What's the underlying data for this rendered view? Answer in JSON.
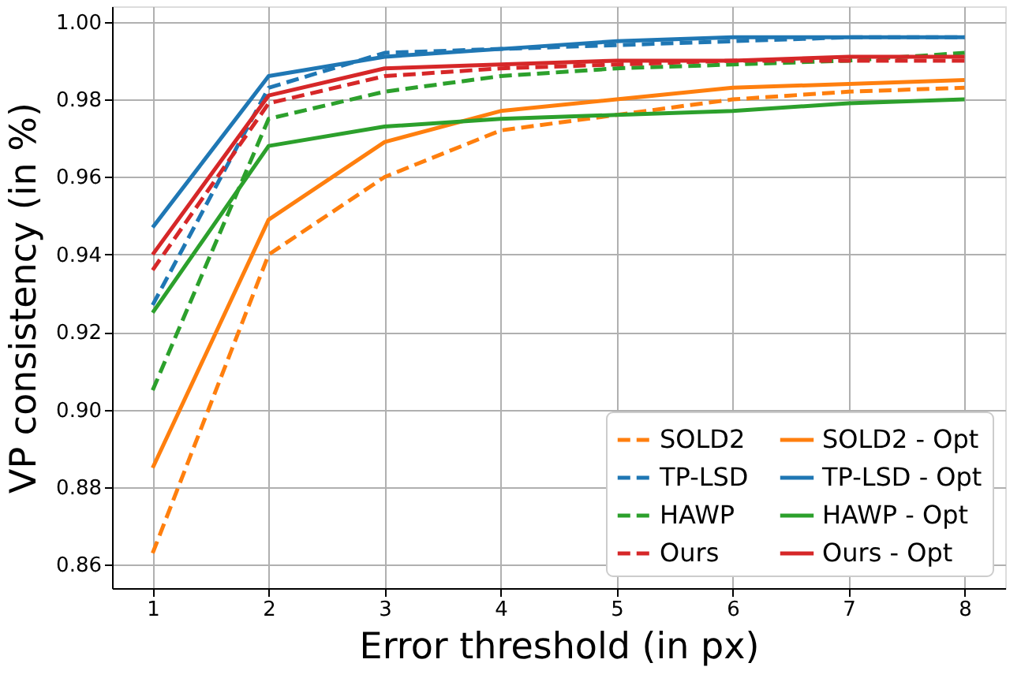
{
  "chart_data": {
    "type": "line",
    "xlabel": "Error threshold (in px)",
    "ylabel": "VP consistency (in %)",
    "x": [
      1,
      2,
      3,
      4,
      5,
      6,
      7,
      8
    ],
    "xlim": [
      0.65,
      8.35
    ],
    "xticks": [
      1,
      2,
      3,
      4,
      5,
      6,
      7,
      8
    ],
    "ylim": [
      0.854,
      1.004
    ],
    "yticks": [
      {
        "value": 0.86,
        "label": "0.86"
      },
      {
        "value": 0.88,
        "label": "0.88"
      },
      {
        "value": 0.9,
        "label": "0.90"
      },
      {
        "value": 0.92,
        "label": "0.92"
      },
      {
        "value": 0.94,
        "label": "0.94"
      },
      {
        "value": 0.96,
        "label": "0.96"
      },
      {
        "value": 0.98,
        "label": "0.98"
      },
      {
        "value": 1.0,
        "label": "1.00"
      }
    ],
    "grid": true,
    "legend": "bottom right",
    "marker": "none",
    "series": [
      {
        "name": "SOLD2",
        "color": "#ff7f0e",
        "line_style": "dashed",
        "values": [
          0.863,
          0.94,
          0.96,
          0.972,
          0.976,
          0.98,
          0.982,
          0.983
        ]
      },
      {
        "name": "TP-LSD",
        "color": "#1f77b4",
        "line_style": "dashed",
        "values": [
          0.927,
          0.983,
          0.992,
          0.993,
          0.994,
          0.995,
          0.996,
          0.996
        ]
      },
      {
        "name": "HAWP",
        "color": "#2ca02c",
        "line_style": "dashed",
        "values": [
          0.905,
          0.975,
          0.982,
          0.986,
          0.988,
          0.989,
          0.99,
          0.992
        ]
      },
      {
        "name": "Ours",
        "color": "#d62728",
        "line_style": "dashed",
        "values": [
          0.936,
          0.979,
          0.986,
          0.988,
          0.989,
          0.99,
          0.99,
          0.99
        ]
      },
      {
        "name": "SOLD2 - Opt",
        "color": "#ff7f0e",
        "line_style": "solid",
        "values": [
          0.885,
          0.949,
          0.969,
          0.977,
          0.98,
          0.983,
          0.984,
          0.985
        ]
      },
      {
        "name": "TP-LSD - Opt",
        "color": "#1f77b4",
        "line_style": "solid",
        "values": [
          0.947,
          0.986,
          0.991,
          0.993,
          0.995,
          0.996,
          0.996,
          0.996
        ]
      },
      {
        "name": "HAWP - Opt",
        "color": "#2ca02c",
        "line_style": "solid",
        "values": [
          0.925,
          0.968,
          0.973,
          0.975,
          0.976,
          0.977,
          0.979,
          0.98
        ]
      },
      {
        "name": "Ours - Opt",
        "color": "#d62728",
        "line_style": "solid",
        "values": [
          0.94,
          0.981,
          0.988,
          0.989,
          0.99,
          0.99,
          0.991,
          0.991
        ]
      }
    ]
  }
}
